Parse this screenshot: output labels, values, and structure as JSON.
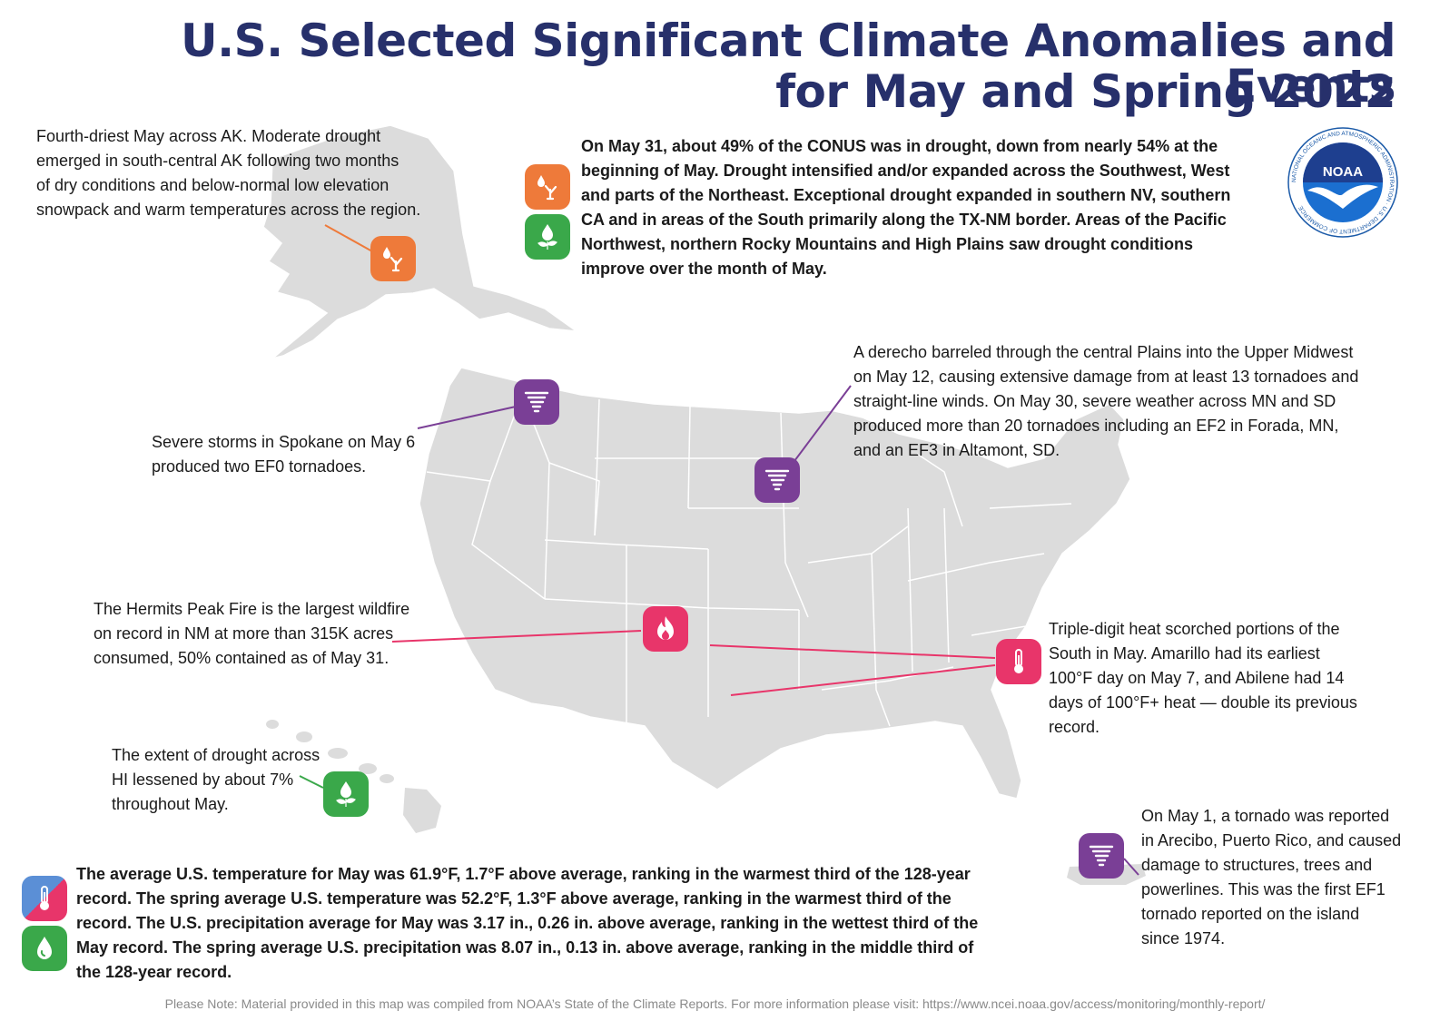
{
  "title": {
    "line1": "U.S. Selected Significant Climate Anomalies and Events",
    "line2": "for May and Spring 2022"
  },
  "logo": {
    "name": "noaa-logo",
    "text": "NOAA",
    "ring_text": "NATIONAL OCEANIC AND ATMOSPHERIC ADMINISTRATION · U.S. DEPARTMENT OF COMMERCE"
  },
  "colors": {
    "title": "#27306b",
    "land": "#dcdcdc",
    "drought": "#ee7a3a",
    "improve": "#3aa84a",
    "tornado": "#7a3f96",
    "heat": "#e8356a",
    "cold": "#5b8fd6"
  },
  "notes": {
    "alaska": [
      "Fourth-driest May across AK. Moderate drought",
      "emerged in south-central AK following two months",
      "of dry conditions and below-normal low elevation",
      "snowpack and warm temperatures across the region."
    ],
    "drought": [
      "On May 31, about 49% of the CONUS was in drought, down from nearly 54% at the",
      "beginning of May. Drought intensified and/or expanded across the Southwest, West",
      "and parts of the Northeast. Exceptional drought expanded in southern NV, southern",
      "CA and in areas of the South primarily along the TX-NM border. Areas of the Pacific",
      "Northwest, northern Rocky Mountains and High Plains saw drought conditions",
      "improve over the month of May."
    ],
    "derecho": [
      "A derecho barreled through the central Plains into the Upper Midwest",
      "on May 12, causing extensive damage from at least 13 tornadoes and",
      "straight-line winds. On May 30, severe weather across MN and SD",
      "produced more than 20 tornadoes including an EF2 in Forada, MN,",
      "and an EF3 in Altamont, SD."
    ],
    "spokane": [
      "Severe storms in Spokane on May 6",
      "produced two EF0 tornadoes."
    ],
    "hermits": [
      "The Hermits Peak Fire is the largest wildfire",
      "on record in NM at more than 315K acres",
      "consumed, 50% contained as of May 31."
    ],
    "heat": [
      "Triple-digit heat scorched portions of the",
      "South in May. Amarillo had its earliest",
      "100°F day on May 7, and Abilene had 14",
      "days of 100°F+ heat — double its previous",
      "record."
    ],
    "hawaii": [
      "The extent of drought across",
      "HI lessened by about 7%",
      "throughout May."
    ],
    "puerto_rico": [
      "On May 1, a tornado was reported",
      "in Arecibo, Puerto Rico, and caused",
      "damage to structures, trees and",
      "powerlines. This was the first EF1",
      "tornado reported on the island",
      "since 1974."
    ],
    "national": [
      "The average U.S. temperature for May was 61.9°F, 1.7°F above average, ranking in the warmest third of the 128-year",
      "record. The spring average U.S. temperature was 52.2°F, 1.3°F above average, ranking in the warmest third of the",
      "record. The U.S. precipitation average for May was 3.17 in., 0.26 in. above average, ranking in the wettest third of the",
      "May record. The spring average U.S. precipitation was 8.07 in., 0.13 in. above average, ranking in the middle third of",
      "the 128-year record."
    ]
  },
  "footnote": "Please Note: Material provided in this map was compiled from NOAA’s State of the Climate Reports. For more information please visit: https://www.ncei.noaa.gov/access/monitoring/monthly-report/",
  "icons": {
    "alaska": "drought-icon",
    "drought_top": "drought-icon",
    "improve_top": "drought-improvement-icon",
    "spokane": "tornado-icon",
    "derecho": "tornado-icon",
    "fire": "wildfire-icon",
    "heat": "thermometer-icon",
    "hawaii": "drought-improvement-icon",
    "puerto_rico": "tornado-icon",
    "temp_legend": "thermometer-icon",
    "precip_legend": "precipitation-icon"
  }
}
